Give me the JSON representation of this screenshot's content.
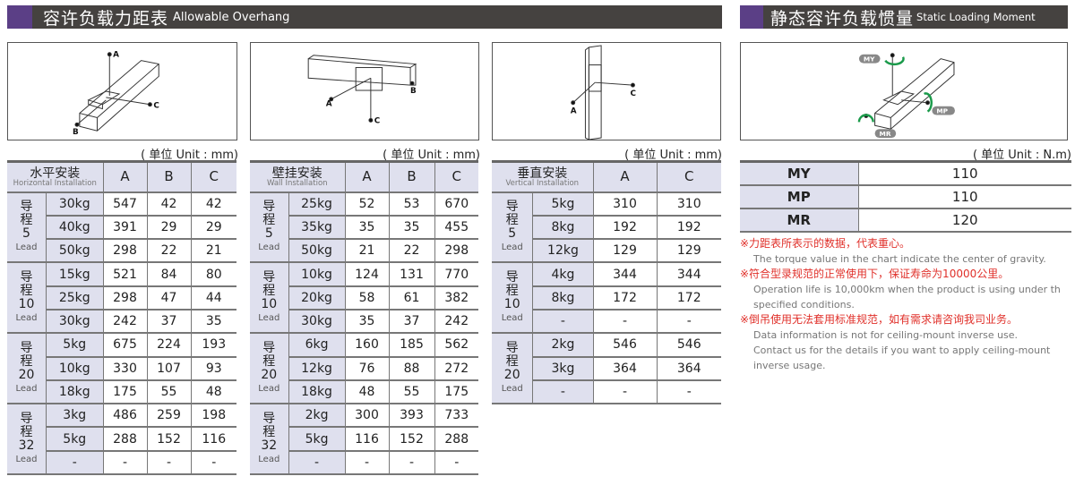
{
  "sections": {
    "overhang": {
      "title_zh": "容许负载力距表",
      "title_en": "Allowable Overhang"
    },
    "moment": {
      "title_zh": "静态容许负载惯量",
      "title_en": "Static Loading Moment"
    }
  },
  "colors": {
    "header_bar": "#454240",
    "accent": "#5b3f86",
    "cell_shade": "#dfe0ee",
    "note_red": "#e0302a",
    "arrow_green": "#1a9a4a"
  },
  "diagram_labels": {
    "A": "A",
    "B": "B",
    "C": "C",
    "MY": "MY",
    "MP": "MP",
    "MR": "MR"
  },
  "unit_mm": "( 单位 Unit : mm)",
  "unit_nm": "( 单位 Unit : N.m)",
  "lead_zh": "导程",
  "lead_en": "Lead",
  "tables": [
    {
      "name": "horizontal",
      "title_zh": "水平安装",
      "title_en": "Horizontal Installation",
      "columns": [
        "A",
        "B",
        "C"
      ],
      "groups": [
        {
          "lead": "5",
          "rows": [
            [
              "30kg",
              "547",
              "42",
              "42"
            ],
            [
              "40kg",
              "391",
              "29",
              "29"
            ],
            [
              "50kg",
              "298",
              "22",
              "21"
            ]
          ]
        },
        {
          "lead": "10",
          "rows": [
            [
              "15kg",
              "521",
              "84",
              "80"
            ],
            [
              "25kg",
              "298",
              "47",
              "44"
            ],
            [
              "30kg",
              "242",
              "37",
              "35"
            ]
          ]
        },
        {
          "lead": "20",
          "rows": [
            [
              "5kg",
              "675",
              "224",
              "193"
            ],
            [
              "10kg",
              "330",
              "107",
              "93"
            ],
            [
              "18kg",
              "175",
              "55",
              "48"
            ]
          ]
        },
        {
          "lead": "32",
          "rows": [
            [
              "3kg",
              "486",
              "259",
              "198"
            ],
            [
              "5kg",
              "288",
              "152",
              "116"
            ],
            [
              "-",
              "-",
              "-",
              "-"
            ]
          ]
        }
      ]
    },
    {
      "name": "wall",
      "title_zh": "壁挂安装",
      "title_en": "Wall Installation",
      "columns": [
        "A",
        "B",
        "C"
      ],
      "groups": [
        {
          "lead": "5",
          "rows": [
            [
              "25kg",
              "52",
              "53",
              "670"
            ],
            [
              "35kg",
              "35",
              "35",
              "455"
            ],
            [
              "50kg",
              "21",
              "22",
              "298"
            ]
          ]
        },
        {
          "lead": "10",
          "rows": [
            [
              "10kg",
              "124",
              "131",
              "770"
            ],
            [
              "20kg",
              "58",
              "61",
              "382"
            ],
            [
              "30kg",
              "35",
              "37",
              "242"
            ]
          ]
        },
        {
          "lead": "20",
          "rows": [
            [
              "6kg",
              "160",
              "185",
              "562"
            ],
            [
              "12kg",
              "76",
              "88",
              "272"
            ],
            [
              "18kg",
              "48",
              "55",
              "175"
            ]
          ]
        },
        {
          "lead": "32",
          "rows": [
            [
              "2kg",
              "300",
              "393",
              "733"
            ],
            [
              "5kg",
              "116",
              "152",
              "288"
            ],
            [
              "-",
              "-",
              "-",
              "-"
            ]
          ]
        }
      ]
    },
    {
      "name": "vertical",
      "title_zh": "垂直安装",
      "title_en": "Vertical Installation",
      "columns": [
        "A",
        "C"
      ],
      "groups": [
        {
          "lead": "5",
          "rows": [
            [
              "5kg",
              "310",
              "310"
            ],
            [
              "8kg",
              "192",
              "192"
            ],
            [
              "12kg",
              "129",
              "129"
            ]
          ]
        },
        {
          "lead": "10",
          "rows": [
            [
              "4kg",
              "344",
              "344"
            ],
            [
              "8kg",
              "172",
              "172"
            ],
            [
              "-",
              "-",
              "-"
            ]
          ]
        },
        {
          "lead": "20",
          "rows": [
            [
              "2kg",
              "546",
              "546"
            ],
            [
              "3kg",
              "364",
              "364"
            ],
            [
              "-",
              "-",
              "-"
            ]
          ]
        }
      ]
    }
  ],
  "moments": [
    {
      "label": "MY",
      "value": "110"
    },
    {
      "label": "MP",
      "value": "110"
    },
    {
      "label": "MR",
      "value": "120"
    }
  ],
  "notes": [
    {
      "zh": "※力距表所表示的数据，代表重心。",
      "en": [
        "The torque value in the chart indicate the center of gravity."
      ]
    },
    {
      "zh": "※符合型录规范的正常使用下，保证寿命为10000公里。",
      "en": [
        "Operation life is 10,000km when the product is using under th",
        " specified conditions."
      ]
    },
    {
      "zh": "※倒吊使用无法套用标准规范，如有需求请咨询我司业务。",
      "en": [
        "Data information is not for ceiling-mount inverse use.",
        " Contact us for the details if you want to apply ceiling-mount",
        " inverse usage."
      ]
    }
  ]
}
